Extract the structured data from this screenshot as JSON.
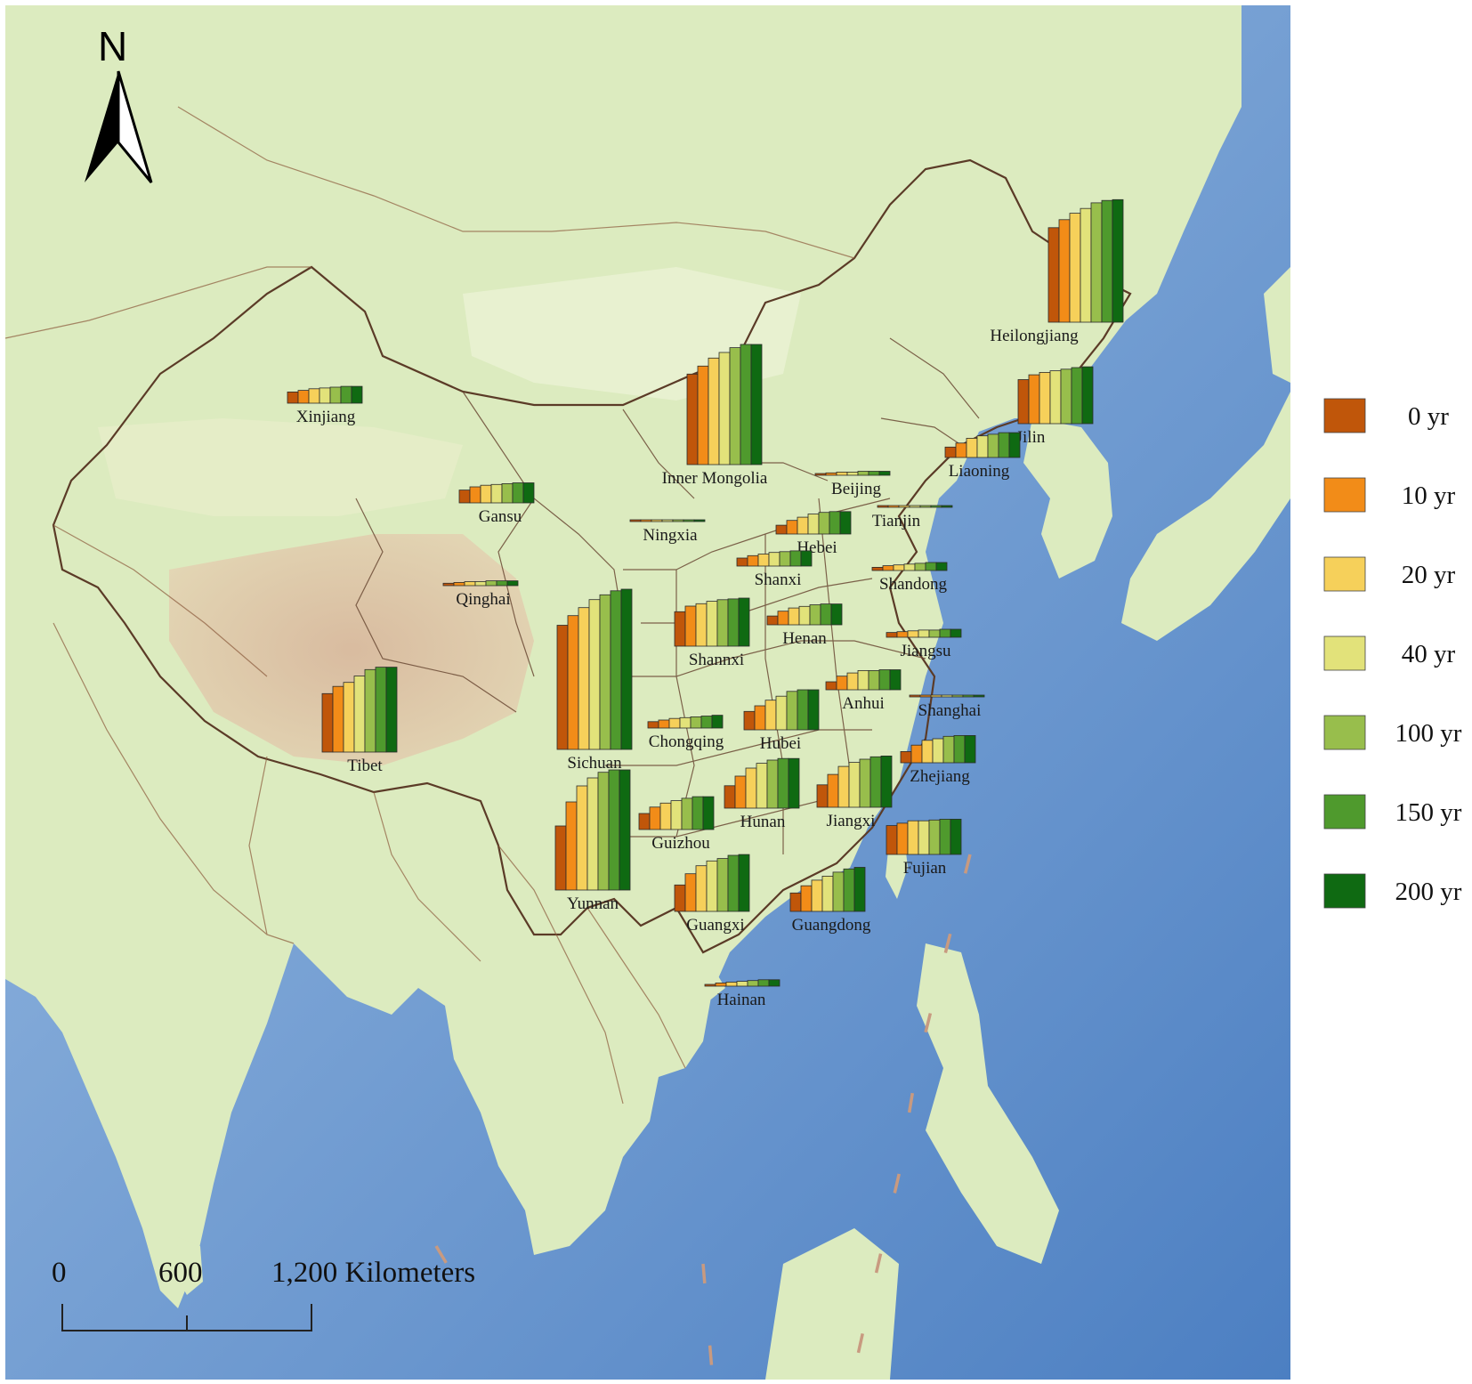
{
  "north_arrow": {
    "letter": "N"
  },
  "scale_bar": {
    "ticks": [
      "0",
      "600",
      "1,200 Kilometers"
    ]
  },
  "colors": {
    "land": "#dcebbf",
    "land_light": "#e9f2d2",
    "plateau": "#d9bfa7",
    "sea_light": "#a9c7e6",
    "sea_deep": "#5f8fcc",
    "border": "#8b5a3c",
    "country_border": "#6e4a34"
  },
  "legend": [
    {
      "label": "0 yr",
      "color": "#c0560a"
    },
    {
      "label": "10 yr",
      "color": "#f28c18"
    },
    {
      "label": "20 yr",
      "color": "#f6d05a"
    },
    {
      "label": "40 yr",
      "color": "#e2e27a"
    },
    {
      "label": "100 yr",
      "color": "#98be4c"
    },
    {
      "label": "150 yr",
      "color": "#4f9a2d"
    },
    {
      "label": "200 yr",
      "color": "#0f6a12"
    }
  ],
  "chart_data": {
    "type": "bar",
    "series_names": [
      "0 yr",
      "10 yr",
      "20 yr",
      "40 yr",
      "100 yr",
      "150 yr",
      "200 yr"
    ],
    "note_units": "relative bar heights",
    "provinces": [
      {
        "name": "Heilongjiang",
        "values": [
          118,
          128,
          136,
          142,
          149,
          152,
          153
        ]
      },
      {
        "name": "Jilin",
        "values": [
          55,
          61,
          64,
          66,
          68,
          70,
          71
        ]
      },
      {
        "name": "Liaoning",
        "values": [
          13,
          18,
          24,
          27,
          29,
          31,
          31
        ]
      },
      {
        "name": "Inner Mongolia",
        "values": [
          113,
          123,
          133,
          140,
          146,
          150,
          150
        ]
      },
      {
        "name": "Beijing",
        "values": [
          2,
          3,
          4,
          4,
          5,
          5,
          5
        ]
      },
      {
        "name": "Tianjin",
        "values": [
          1,
          1,
          1,
          1,
          1,
          1,
          1
        ]
      },
      {
        "name": "Xinjiang",
        "values": [
          14,
          16,
          18,
          19,
          20,
          21,
          21
        ]
      },
      {
        "name": "Gansu",
        "values": [
          16,
          20,
          22,
          23,
          24,
          25,
          25
        ]
      },
      {
        "name": "Ningxia",
        "values": [
          1,
          1,
          1,
          1,
          1,
          1,
          1
        ]
      },
      {
        "name": "Hebei",
        "values": [
          11,
          17,
          21,
          25,
          27,
          28,
          28
        ]
      },
      {
        "name": "Shanxi",
        "values": [
          10,
          13,
          15,
          17,
          18,
          19,
          19
        ]
      },
      {
        "name": "Qinghai",
        "values": [
          3,
          4,
          5,
          5,
          6,
          6,
          6
        ]
      },
      {
        "name": "Shandong",
        "values": [
          4,
          6,
          7,
          8,
          9,
          10,
          10
        ]
      },
      {
        "name": "Shannxi",
        "values": [
          43,
          50,
          53,
          56,
          58,
          59,
          60
        ]
      },
      {
        "name": "Henan",
        "values": [
          11,
          17,
          21,
          23,
          25,
          26,
          26
        ]
      },
      {
        "name": "Jiangsu",
        "values": [
          6,
          7,
          8,
          9,
          9,
          10,
          10
        ]
      },
      {
        "name": "Sichuan",
        "values": [
          155,
          167,
          177,
          187,
          193,
          198,
          200
        ]
      },
      {
        "name": "Tibet",
        "values": [
          73,
          82,
          87,
          95,
          103,
          106,
          106
        ]
      },
      {
        "name": "Chongqing",
        "values": [
          8,
          10,
          12,
          13,
          14,
          15,
          16
        ]
      },
      {
        "name": "Hubei",
        "values": [
          23,
          30,
          37,
          42,
          48,
          50,
          50
        ]
      },
      {
        "name": "Anhui",
        "values": [
          10,
          17,
          21,
          24,
          24,
          25,
          25
        ]
      },
      {
        "name": "Shanghai",
        "values": [
          1,
          1,
          1,
          1,
          1,
          1,
          1
        ]
      },
      {
        "name": "Zhejiang",
        "values": [
          14,
          22,
          28,
          30,
          33,
          34,
          34
        ]
      },
      {
        "name": "Hunan",
        "values": [
          28,
          40,
          50,
          56,
          60,
          62,
          62
        ]
      },
      {
        "name": "Jiangxi",
        "values": [
          28,
          41,
          51,
          56,
          60,
          63,
          64
        ]
      },
      {
        "name": "Guizhou",
        "values": [
          20,
          28,
          33,
          36,
          39,
          41,
          41
        ]
      },
      {
        "name": "Fujian",
        "values": [
          36,
          39,
          42,
          42,
          43,
          44,
          44
        ]
      },
      {
        "name": "Yunnan",
        "values": [
          80,
          110,
          130,
          140,
          147,
          150,
          150
        ]
      },
      {
        "name": "Guangxi",
        "values": [
          33,
          47,
          57,
          63,
          66,
          70,
          71
        ]
      },
      {
        "name": "Guangdong",
        "values": [
          23,
          32,
          39,
          44,
          49,
          53,
          55
        ]
      },
      {
        "name": "Hainan",
        "values": [
          2,
          4,
          5,
          6,
          7,
          8,
          8
        ]
      }
    ]
  }
}
